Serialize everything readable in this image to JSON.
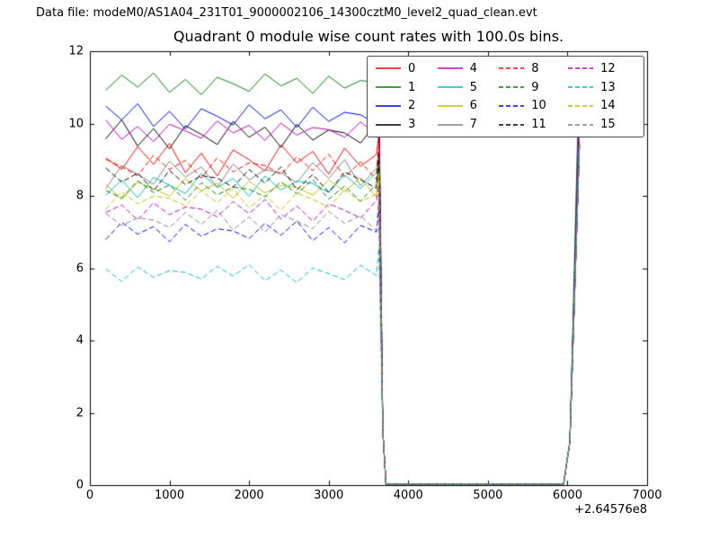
{
  "chart_data": {
    "type": "line",
    "data_file_label": "Data file: modeM0/AS1A04_231T01_9000002106_14300cztM0_level2_quad_clean.evt",
    "title": "Quadrant 0 module wise count rates with 100.0s bins.",
    "xlabel": "",
    "ylabel": "",
    "xlim": [
      0,
      7000
    ],
    "ylim": [
      0,
      12
    ],
    "xticks": [
      "0",
      "1000",
      "2000",
      "3000",
      "4000",
      "5000",
      "6000",
      "7000"
    ],
    "xtick_values": [
      0,
      1000,
      2000,
      3000,
      4000,
      5000,
      6000,
      7000
    ],
    "yticks": [
      "0",
      "2",
      "4",
      "6",
      "8",
      "10",
      "12"
    ],
    "ytick_values": [
      0,
      2,
      4,
      6,
      8,
      10,
      12
    ],
    "x_offset_label": "+2.64576e8",
    "grid": false,
    "legend": {
      "position": "upper right",
      "columns": 4
    },
    "x": [
      200,
      400,
      600,
      800,
      1000,
      1200,
      1400,
      1600,
      1800,
      2000,
      2200,
      2400,
      2600,
      2800,
      3000,
      3200,
      3400,
      3600,
      3630,
      3680,
      3720,
      5950,
      6030,
      6150
    ],
    "series": [
      {
        "name": "0",
        "color": "#ff0000",
        "dash": "solid",
        "values": [
          9.05,
          8.73,
          9.36,
          8.87,
          9.45,
          8.64,
          9.18,
          8.55,
          9.27,
          9.0,
          8.69,
          9.41,
          8.91,
          9.23,
          8.6,
          9.32,
          8.82,
          9.14,
          9.7,
          1.5,
          0.02,
          0.02,
          1.2,
          9.5
        ]
      },
      {
        "name": "1",
        "color": "#008000",
        "dash": "solid",
        "values": [
          10.92,
          11.34,
          11.01,
          11.4,
          10.86,
          11.22,
          10.8,
          11.28,
          11.1,
          10.89,
          11.37,
          11.04,
          11.25,
          10.83,
          11.31,
          10.98,
          11.19,
          11.13,
          11.5,
          1.5,
          0.02,
          0.02,
          1.2,
          11.65
        ]
      },
      {
        "name": "2",
        "color": "#0000ff",
        "dash": "solid",
        "values": [
          10.48,
          10.1,
          10.55,
          9.92,
          10.34,
          9.85,
          10.41,
          10.2,
          9.96,
          10.52,
          10.13,
          10.38,
          9.89,
          10.45,
          10.06,
          10.31,
          10.24,
          9.99,
          10.9,
          1.5,
          0.02,
          0.02,
          1.2,
          10.7
        ]
      },
      {
        "name": "3",
        "color": "#000000",
        "dash": "solid",
        "values": [
          9.58,
          10.1,
          9.38,
          9.86,
          9.3,
          9.94,
          9.7,
          9.42,
          10.06,
          9.62,
          9.9,
          9.34,
          9.98,
          9.54,
          9.82,
          9.74,
          9.46,
          10.02,
          10.4,
          1.5,
          0.02,
          0.02,
          1.2,
          10.2
        ]
      },
      {
        "name": "4",
        "color": "#bf00bf",
        "dash": "solid",
        "values": [
          10.1,
          9.56,
          9.92,
          9.5,
          9.98,
          9.8,
          9.59,
          10.07,
          9.74,
          9.95,
          9.53,
          10.01,
          9.68,
          9.89,
          9.83,
          9.62,
          10.04,
          9.71,
          10.5,
          1.5,
          0.02,
          0.02,
          1.2,
          10.3
        ]
      },
      {
        "name": "5",
        "color": "#00bfbf",
        "dash": "solid",
        "values": [
          8.02,
          8.44,
          7.95,
          8.51,
          8.3,
          8.06,
          8.62,
          8.23,
          8.48,
          7.99,
          8.55,
          8.16,
          8.41,
          8.34,
          8.09,
          8.58,
          8.2,
          8.65,
          9.0,
          1.5,
          0.02,
          0.02,
          1.2,
          9.4
        ]
      },
      {
        "name": "6",
        "color": "#bfbf00",
        "dash": "solid",
        "values": [
          8.32,
          7.9,
          8.38,
          8.2,
          7.99,
          8.47,
          8.14,
          8.35,
          7.93,
          8.41,
          8.08,
          8.29,
          8.23,
          8.02,
          8.44,
          8.11,
          8.5,
          7.96,
          8.9,
          1.5,
          0.02,
          0.02,
          1.2,
          9.4
        ]
      },
      {
        "name": "7",
        "color": "#808080",
        "dash": "solid",
        "values": [
          8.2,
          8.84,
          8.6,
          8.32,
          8.96,
          8.52,
          8.8,
          8.24,
          8.88,
          8.44,
          8.72,
          8.64,
          8.36,
          8.92,
          8.48,
          9.0,
          8.28,
          8.76,
          9.3,
          1.5,
          0.02,
          0.02,
          1.2,
          9.4
        ]
      },
      {
        "name": "8",
        "color": "#ff0000",
        "dash": "dashed",
        "values": [
          9.01,
          8.8,
          8.56,
          9.12,
          8.73,
          8.98,
          8.49,
          9.05,
          8.66,
          8.91,
          8.84,
          8.59,
          9.08,
          8.7,
          9.15,
          8.52,
          8.94,
          8.45,
          9.5,
          1.5,
          0.02,
          0.02,
          1.2,
          9.4
        ]
      },
      {
        "name": "9",
        "color": "#008000",
        "dash": "dashed",
        "values": [
          8.15,
          7.94,
          8.42,
          8.09,
          8.3,
          7.88,
          8.36,
          8.03,
          8.24,
          8.18,
          7.97,
          8.39,
          8.06,
          8.45,
          7.91,
          8.27,
          7.85,
          8.33,
          8.85,
          1.5,
          0.02,
          0.02,
          1.2,
          9.4
        ]
      },
      {
        "name": "10",
        "color": "#0000ff",
        "dash": "dashed",
        "values": [
          6.79,
          7.27,
          6.94,
          7.15,
          6.73,
          7.21,
          6.88,
          7.09,
          7.03,
          6.82,
          7.24,
          6.91,
          7.3,
          6.76,
          7.12,
          6.7,
          7.18,
          7.0,
          7.7,
          1.5,
          0.02,
          0.02,
          1.2,
          9.4
        ]
      },
      {
        "name": "11",
        "color": "#000000",
        "dash": "dashed",
        "values": [
          8.77,
          8.38,
          8.63,
          8.14,
          8.7,
          8.31,
          8.56,
          8.49,
          8.24,
          8.73,
          8.35,
          8.8,
          8.17,
          8.59,
          8.1,
          8.66,
          8.45,
          8.21,
          9.15,
          1.5,
          0.02,
          0.02,
          1.2,
          9.4
        ]
      },
      {
        "name": "12",
        "color": "#bf00bf",
        "dash": "dashed",
        "values": [
          7.54,
          7.75,
          7.33,
          7.81,
          7.48,
          7.69,
          7.63,
          7.42,
          7.84,
          7.51,
          7.9,
          7.36,
          7.72,
          7.3,
          7.78,
          7.6,
          7.39,
          7.87,
          8.3,
          1.5,
          0.02,
          0.02,
          1.2,
          9.4
        ]
      },
      {
        "name": "13",
        "color": "#00bfbf",
        "dash": "dashed",
        "values": [
          5.98,
          5.63,
          6.03,
          5.75,
          5.93,
          5.88,
          5.7,
          6.05,
          5.78,
          6.1,
          5.65,
          5.95,
          5.6,
          6.0,
          5.85,
          5.68,
          6.08,
          5.8,
          6.55,
          1.5,
          0.02,
          0.02,
          1.2,
          9.4
        ]
      },
      {
        "name": "14",
        "color": "#bfbf00",
        "dash": "dashed",
        "values": [
          7.63,
          8.11,
          7.78,
          7.99,
          7.93,
          7.72,
          8.14,
          7.81,
          8.2,
          7.66,
          8.02,
          7.6,
          8.08,
          7.9,
          7.69,
          8.17,
          7.84,
          8.05,
          8.6,
          1.5,
          0.02,
          0.02,
          1.2,
          9.4
        ]
      },
      {
        "name": "15",
        "color": "#808080",
        "dash": "dashed",
        "values": [
          7.51,
          7.18,
          7.39,
          7.33,
          7.12,
          7.54,
          7.21,
          7.6,
          7.06,
          7.42,
          7.0,
          7.48,
          7.3,
          7.09,
          7.57,
          7.24,
          7.45,
          7.03,
          8.0,
          1.5,
          0.02,
          0.02,
          1.2,
          9.4
        ]
      }
    ]
  }
}
